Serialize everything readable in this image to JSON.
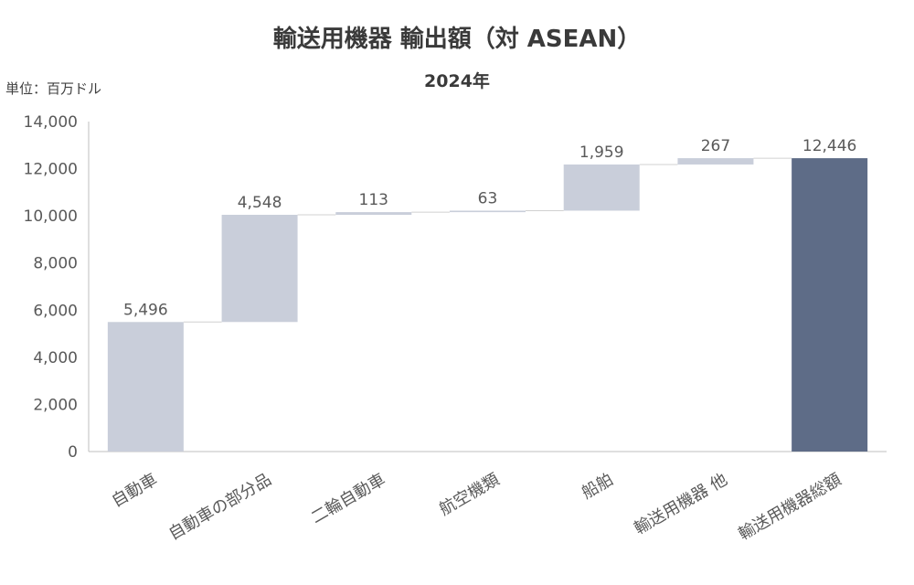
{
  "chart_data": {
    "type": "bar",
    "subtype": "waterfall",
    "title": "輸送用機器 輸出額（対 ASEAN）",
    "subtitle": "2024年",
    "unit_label": "単位：百万ドル",
    "ylim": [
      0,
      14000
    ],
    "y_ticks": [
      0,
      2000,
      4000,
      6000,
      8000,
      10000,
      12000,
      14000
    ],
    "y_tick_labels": [
      "0",
      "2,000",
      "4,000",
      "6,000",
      "8,000",
      "10,000",
      "12,000",
      "14,000"
    ],
    "grid": false,
    "categories": [
      "自動車",
      "自動車の部分品",
      "二輪自動車",
      "航空機類",
      "船舶",
      "輸送用機器 他",
      "輸送用機器総額"
    ],
    "values": [
      5496,
      4548,
      113,
      63,
      1959,
      267,
      12446
    ],
    "data_labels": [
      "5,496",
      "4,548",
      "113",
      "63",
      "1,959",
      "267",
      "12,446"
    ],
    "is_total": [
      false,
      false,
      false,
      false,
      false,
      false,
      true
    ],
    "colors": {
      "increment": "#c9ceda",
      "total": "#5e6c87",
      "axis": "#bfbfbf",
      "connector": "#d0d0d0"
    }
  }
}
